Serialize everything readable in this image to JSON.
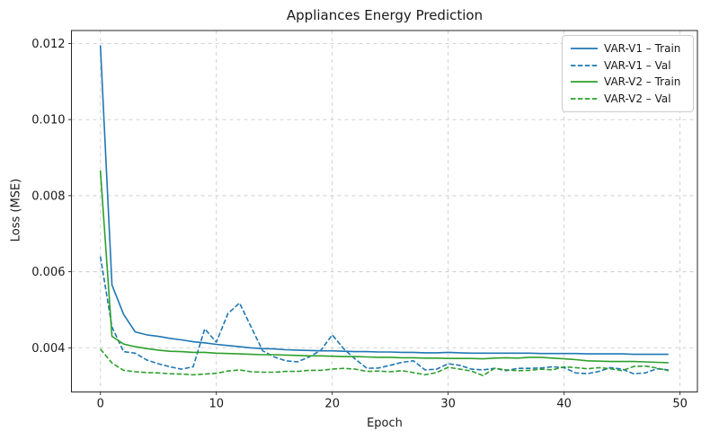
{
  "chart_data": {
    "type": "line",
    "title": "Appliances Energy Prediction",
    "xlabel": "Epoch",
    "ylabel": "Loss (MSE)",
    "xlim": [
      -2.5,
      51.5
    ],
    "ylim": [
      0.00284,
      0.01234
    ],
    "xticks": [
      0,
      10,
      20,
      30,
      40,
      50
    ],
    "xtick_labels": [
      "0",
      "10",
      "20",
      "30",
      "40",
      "50"
    ],
    "yticks": [
      0.004,
      0.006,
      0.008,
      0.01,
      0.012
    ],
    "ytick_labels": [
      "0.004",
      "0.006",
      "0.008",
      "0.010",
      "0.012"
    ],
    "grid": true,
    "grid_style": "dashed",
    "legend_position": "upper right",
    "x": [
      0,
      1,
      2,
      3,
      4,
      5,
      6,
      7,
      8,
      9,
      10,
      11,
      12,
      13,
      14,
      15,
      16,
      17,
      18,
      19,
      20,
      21,
      22,
      23,
      24,
      25,
      26,
      27,
      28,
      29,
      30,
      31,
      32,
      33,
      34,
      35,
      36,
      37,
      38,
      39,
      40,
      41,
      42,
      43,
      44,
      45,
      46,
      47,
      48,
      49
    ],
    "series": [
      {
        "name": "VAR-V1 – Train",
        "color": "#1f77b4",
        "style": "solid",
        "values": [
          0.01195,
          0.00565,
          0.00488,
          0.00442,
          0.00434,
          0.0043,
          0.00425,
          0.00421,
          0.00416,
          0.00413,
          0.00409,
          0.00406,
          0.00403,
          0.004,
          0.00398,
          0.00397,
          0.00395,
          0.00394,
          0.00393,
          0.00392,
          0.00392,
          0.00391,
          0.0039,
          0.0039,
          0.00389,
          0.00389,
          0.00388,
          0.00388,
          0.00387,
          0.00387,
          0.00388,
          0.00387,
          0.00386,
          0.00386,
          0.00386,
          0.00386,
          0.00386,
          0.00386,
          0.00385,
          0.00385,
          0.00385,
          0.00385,
          0.00384,
          0.00384,
          0.00384,
          0.00384,
          0.00383,
          0.00383,
          0.00383,
          0.00383
        ]
      },
      {
        "name": "VAR-V1 – Val",
        "color": "#1f77b4",
        "style": "dashed",
        "values": [
          0.0064,
          0.00455,
          0.0039,
          0.00386,
          0.00368,
          0.00358,
          0.0035,
          0.00344,
          0.0035,
          0.0045,
          0.00415,
          0.0049,
          0.00518,
          0.00455,
          0.00392,
          0.00376,
          0.00366,
          0.00363,
          0.00376,
          0.00393,
          0.00434,
          0.00397,
          0.0037,
          0.00346,
          0.00347,
          0.00354,
          0.00362,
          0.00366,
          0.00342,
          0.00344,
          0.00358,
          0.00354,
          0.00344,
          0.00342,
          0.00346,
          0.0034,
          0.00346,
          0.00346,
          0.00347,
          0.0035,
          0.00348,
          0.00334,
          0.00332,
          0.00338,
          0.00348,
          0.00344,
          0.00332,
          0.00334,
          0.00345,
          0.00342
        ]
      },
      {
        "name": "VAR-V2 – Train",
        "color": "#2ca02c",
        "style": "solid",
        "values": [
          0.00866,
          0.0043,
          0.0041,
          0.00403,
          0.00398,
          0.00394,
          0.00391,
          0.0039,
          0.00388,
          0.00388,
          0.00386,
          0.00385,
          0.00384,
          0.00383,
          0.00382,
          0.00382,
          0.00381,
          0.0038,
          0.00379,
          0.00379,
          0.00378,
          0.00377,
          0.00377,
          0.00376,
          0.00375,
          0.00375,
          0.00374,
          0.00374,
          0.00373,
          0.00373,
          0.00372,
          0.00372,
          0.00372,
          0.00371,
          0.00373,
          0.00374,
          0.00373,
          0.00375,
          0.00375,
          0.00373,
          0.00371,
          0.00369,
          0.00366,
          0.00365,
          0.00364,
          0.00364,
          0.00364,
          0.00363,
          0.00362,
          0.00361
        ]
      },
      {
        "name": "VAR-V2 – Val",
        "color": "#2ca02c",
        "style": "dashed",
        "values": [
          0.00397,
          0.0036,
          0.00341,
          0.00337,
          0.00335,
          0.00334,
          0.00332,
          0.00331,
          0.00329,
          0.00331,
          0.00333,
          0.00339,
          0.00342,
          0.00337,
          0.00336,
          0.00336,
          0.00338,
          0.00338,
          0.00341,
          0.00341,
          0.00344,
          0.00346,
          0.00344,
          0.00338,
          0.00339,
          0.00337,
          0.0034,
          0.00335,
          0.00329,
          0.00335,
          0.00349,
          0.00344,
          0.00339,
          0.00327,
          0.00346,
          0.00342,
          0.0034,
          0.00341,
          0.00344,
          0.00342,
          0.0035,
          0.00348,
          0.00345,
          0.00348,
          0.00345,
          0.0034,
          0.00351,
          0.00352,
          0.00347,
          0.0034
        ]
      }
    ],
    "colors": {
      "grid": "#cccccc",
      "axis": "#262626",
      "text": "#1a1a1a",
      "legend_border": "#cccccc",
      "background": "#ffffff"
    }
  }
}
